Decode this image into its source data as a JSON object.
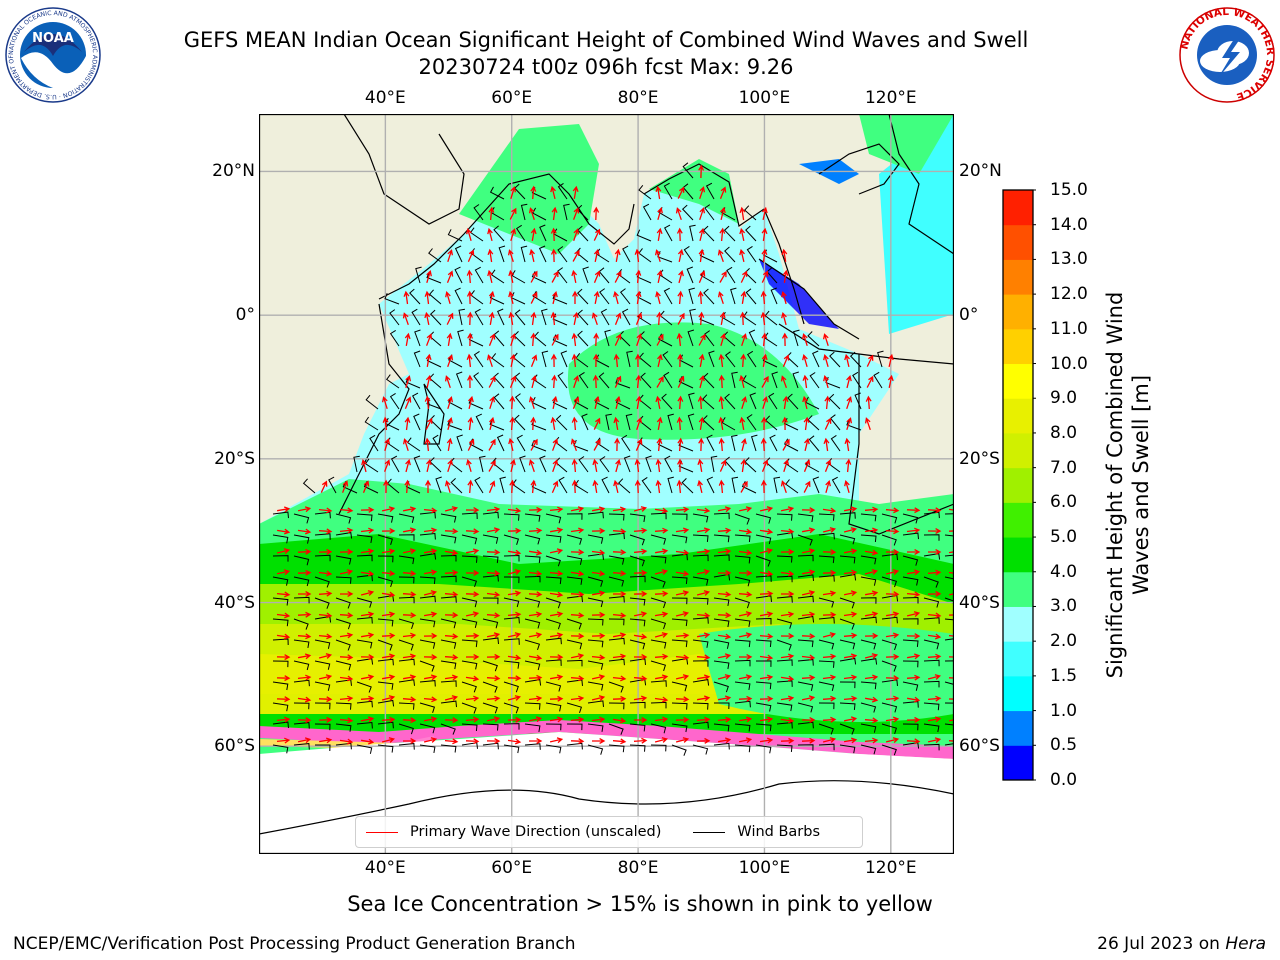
{
  "title": {
    "line1": "GEFS MEAN Indian Ocean Significant Height of Combined Wind Waves and Swell",
    "line2": "20230724 t00z 096h fcst   Max: 9.26"
  },
  "map": {
    "lon_range": [
      20,
      130
    ],
    "lat_range": [
      -75,
      28
    ],
    "lon_ticks": [
      {
        "lon": 40,
        "label": "40°E"
      },
      {
        "lon": 60,
        "label": "60°E"
      },
      {
        "lon": 80,
        "label": "80°E"
      },
      {
        "lon": 100,
        "label": "100°E"
      },
      {
        "lon": 120,
        "label": "120°E"
      }
    ],
    "lat_ticks": [
      {
        "lat": 20,
        "label": "20°N"
      },
      {
        "lat": 0,
        "label": "0°"
      },
      {
        "lat": -20,
        "label": "20°S"
      },
      {
        "lat": -40,
        "label": "40°S"
      },
      {
        "lat": -60,
        "label": "60°S"
      }
    ],
    "land_color": "#efefdc",
    "gridlines": true
  },
  "colorbar": {
    "label": "Significant Height of Combined Wind Waves and Swell [m]",
    "ticks": [
      "0.0",
      "0.5",
      "1.0",
      "1.5",
      "2.0",
      "3.0",
      "4.0",
      "5.0",
      "6.0",
      "7.0",
      "8.0",
      "9.0",
      "10.0",
      "11.0",
      "12.0",
      "13.0",
      "14.0",
      "15.0"
    ],
    "colors": [
      "#0000ff",
      "#0080ff",
      "#00ffff",
      "#40ffff",
      "#a0ffff",
      "#40ff80",
      "#00e000",
      "#40f000",
      "#a0f000",
      "#d0f000",
      "#e8f000",
      "#ffff00",
      "#ffd000",
      "#ffb000",
      "#ff8000",
      "#ff5000",
      "#ff2000"
    ]
  },
  "legend": {
    "wave_direction": "Primary Wave Direction (unscaled)",
    "wind_barbs": "Wind Barbs",
    "wave_color": "#ff0000",
    "barb_color": "#000000"
  },
  "subcaption": "Sea Ice Concentration > 15% is shown in pink to yellow",
  "footer": {
    "left": "NCEP/EMC/Verification Post Processing Product Generation Branch",
    "right_prefix": "26 Jul 2023 on ",
    "right_host": "Hera"
  },
  "logos": {
    "noaa_text": "NOAA",
    "noaa_ring": "NATIONAL OCEANIC AND ATMOSPHERIC ADMINISTRATION · U.S. DEPARTMENT OF COMMERCE",
    "nws_ring": "NATIONAL WEATHER SERVICE"
  }
}
